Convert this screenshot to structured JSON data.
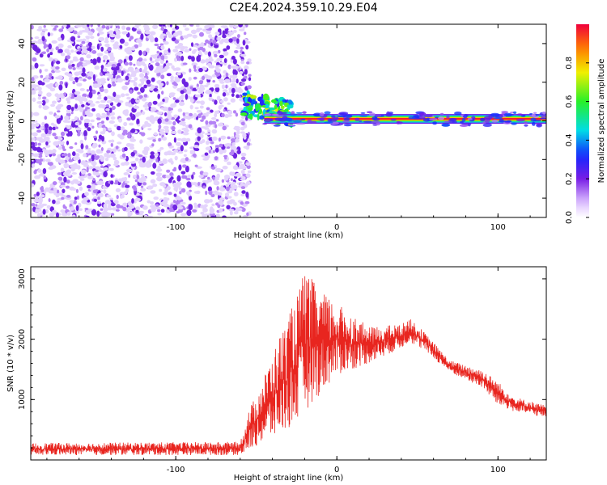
{
  "title": "C2E4.2024.359.10.29.E04",
  "colors": {
    "trace": "#e8251f",
    "axes": "#000000",
    "speckle": "#8a3cf0"
  },
  "chart_data": [
    {
      "type": "heatmap",
      "title": "C2E4.2024.359.10.29.E04",
      "xlabel": "Height of straight line (km)",
      "ylabel": "Frequency (Hz)",
      "xlim": [
        -190,
        130
      ],
      "ylim": [
        -50,
        50
      ],
      "x_ticks": [
        -100,
        0,
        100
      ],
      "y_ticks": [
        -40,
        -20,
        0,
        20,
        40
      ],
      "colorbar": {
        "label": "Normalized spectral amplitude",
        "range": [
          0.0,
          1.0
        ],
        "ticks": [
          "0.0",
          "0.2",
          "0.4",
          "0.6",
          "0.8"
        ],
        "colormap": "rainbow"
      },
      "regions": [
        {
          "name": "noise",
          "x_range": [
            -190,
            -57
          ],
          "freq_range": [
            -50,
            50
          ],
          "amplitude": 0.15
        },
        {
          "name": "ridge",
          "x_range": [
            -57,
            130
          ],
          "freq_center": 1,
          "amplitude": 0.95
        }
      ]
    },
    {
      "type": "line",
      "xlabel": "Height of straight line (km)",
      "ylabel": "SNR (10 * v/v)",
      "xlim": [
        -190,
        130
      ],
      "ylim": [
        0,
        3200
      ],
      "x_ticks": [
        -100,
        0,
        100
      ],
      "y_ticks": [
        1000,
        2000,
        3000
      ],
      "envelope": {
        "x": [
          -190,
          -60,
          -55,
          -45,
          -35,
          -25,
          -20,
          -10,
          0,
          20,
          40,
          45,
          55,
          70,
          90,
          100,
          110,
          130
        ],
        "low": [
          80,
          80,
          150,
          300,
          400,
          600,
          800,
          1100,
          1400,
          1600,
          1850,
          1950,
          1800,
          1450,
          1200,
          900,
          800,
          700
        ],
        "high": [
          280,
          300,
          800,
          1400,
          2100,
          2700,
          3150,
          2800,
          2600,
          2200,
          2250,
          2350,
          2100,
          1650,
          1500,
          1300,
          1050,
          900
        ]
      }
    }
  ]
}
